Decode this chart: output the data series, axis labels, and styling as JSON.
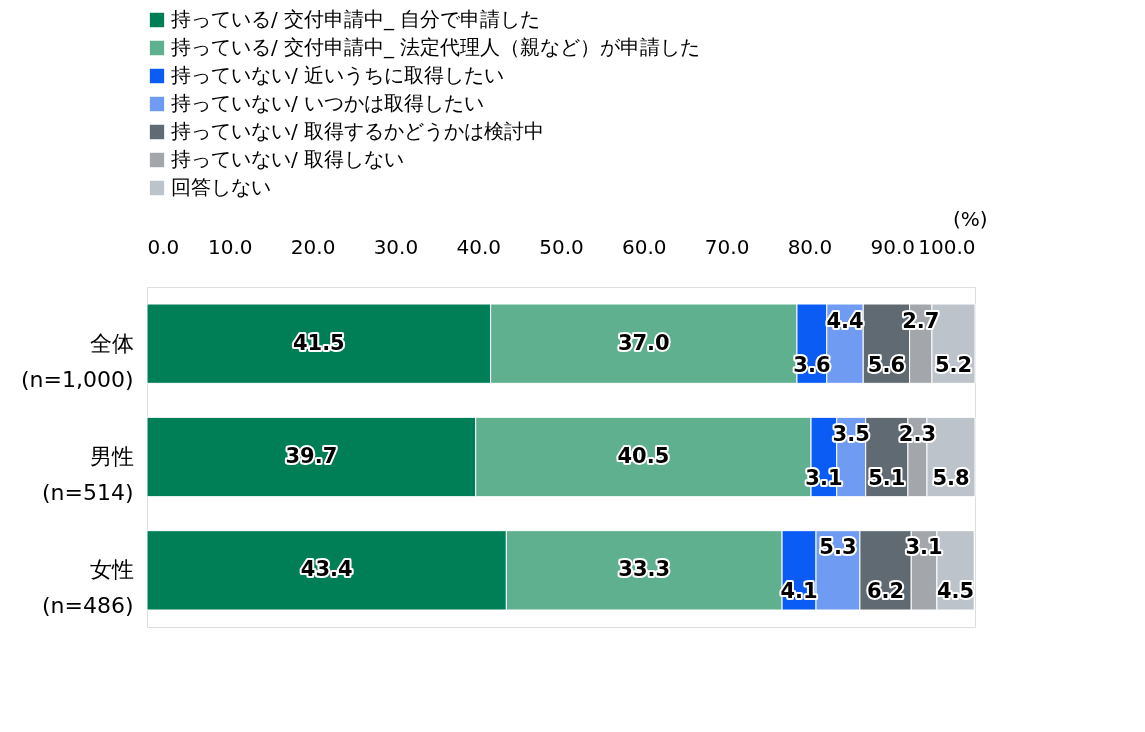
{
  "chart_data": {
    "type": "bar",
    "orientation": "horizontal",
    "stacked": true,
    "xlabel": "(%)",
    "categories": [
      "全体\n(n=1,000)",
      "男性\n(n=514)",
      "女性\n(n=486)"
    ],
    "series": [
      {
        "name": "持っている/ 交付申請中_ 自分で申請した",
        "color": "#007f56",
        "values": [
          41.5,
          39.7,
          43.4
        ],
        "value_labels": [
          "41.5",
          "39.7",
          "43.4"
        ]
      },
      {
        "name": "持っている/ 交付申請中_ 法定代理人（親など）が申請した",
        "color": "#5fb08f",
        "values": [
          37.0,
          40.5,
          33.3
        ],
        "value_labels": [
          "37.0",
          "40.5",
          "33.3"
        ]
      },
      {
        "name": "持っていない/ 近いうちに取得したい",
        "color": "#0a5cf5",
        "values": [
          3.6,
          3.1,
          4.1
        ],
        "value_labels": [
          "3.6",
          "3.1",
          "4.1"
        ]
      },
      {
        "name": "持っていない/ いつかは取得したい",
        "color": "#6f9cf2",
        "values": [
          4.4,
          3.5,
          5.3
        ],
        "value_labels": [
          "4.4",
          "3.5",
          "5.3"
        ]
      },
      {
        "name": "持っていない/ 取得するかどうかは検討中",
        "color": "#5f6a72",
        "values": [
          5.6,
          5.1,
          6.2
        ],
        "value_labels": [
          "5.6",
          "5.1",
          "6.2"
        ]
      },
      {
        "name": "持っていない/ 取得しない",
        "color": "#a3a7ab",
        "values": [
          2.7,
          2.3,
          3.1
        ],
        "value_labels": [
          "2.7",
          "2.3",
          "3.1"
        ]
      },
      {
        "name": "回答しない",
        "color": "#bcc3ca",
        "values": [
          5.2,
          5.8,
          4.5
        ],
        "value_labels": [
          "5.2",
          "5.8",
          "4.5"
        ]
      }
    ],
    "xlim": [
      0,
      100
    ],
    "xticks": [
      {
        "value": 0,
        "label": "0.0"
      },
      {
        "value": 10,
        "label": "10.0"
      },
      {
        "value": 20,
        "label": "20.0"
      },
      {
        "value": 30,
        "label": "30.0"
      },
      {
        "value": 40,
        "label": "40.0"
      },
      {
        "value": 50,
        "label": "50.0"
      },
      {
        "value": 60,
        "label": "60.0"
      },
      {
        "value": 70,
        "label": "70.0"
      },
      {
        "value": 80,
        "label": "80.0"
      },
      {
        "value": 90,
        "label": "90.0"
      },
      {
        "value": 100,
        "label": "100.0"
      }
    ],
    "grid": false,
    "legend": "top"
  }
}
